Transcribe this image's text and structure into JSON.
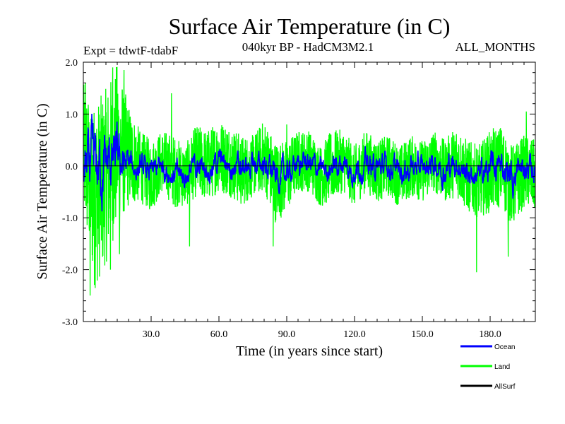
{
  "chart_data": {
    "type": "line",
    "title": "Surface Air Temperature (in C)",
    "subtitle_left": "Expt = tdwtF-tdabF",
    "subtitle_center": "040kyr BP - HadCM3M2.1",
    "subtitle_right": "ALL_MONTHS",
    "xlabel": "Time (in years since start)",
    "ylabel": "Surface Air Temperature (in C)",
    "xlim": [
      0,
      200
    ],
    "ylim": [
      -3.0,
      2.0
    ],
    "x_ticks": [
      30,
      60,
      90,
      120,
      150,
      180
    ],
    "x_tick_labels": [
      "30.0",
      "60.0",
      "90.0",
      "120.0",
      "150.0",
      "180.0"
    ],
    "y_ticks": [
      -3,
      -2,
      -1,
      0,
      1,
      2
    ],
    "y_tick_labels": [
      "-3.0",
      "-2.0",
      "-1.0",
      "0.0",
      "1.0",
      "2.0"
    ],
    "series": [
      {
        "name": "Land",
        "color": "#00ff00",
        "x": [
          0,
          5,
          10,
          15,
          20,
          25,
          30,
          35,
          40,
          45,
          50,
          55,
          60,
          65,
          70,
          75,
          80,
          85,
          90,
          95,
          100,
          105,
          110,
          115,
          120,
          125,
          130,
          135,
          140,
          145,
          150,
          155,
          160,
          165,
          170,
          175,
          180,
          185,
          190,
          195,
          200
        ],
        "values": [
          0.3,
          -0.6,
          -0.2,
          0.4,
          0.2,
          0.0,
          -0.2,
          0.1,
          -0.1,
          -0.2,
          0.1,
          0.0,
          0.2,
          0.1,
          -0.1,
          0.0,
          0.2,
          -0.3,
          -0.2,
          0.1,
          0.1,
          -0.2,
          0.0,
          0.1,
          -0.2,
          0.1,
          -0.1,
          0.0,
          -0.2,
          0.0,
          -0.1,
          0.1,
          -0.1,
          0.1,
          -0.2,
          -0.3,
          -0.1,
          0.0,
          -0.4,
          -0.1,
          -0.2
        ],
        "envelope": [
          1.3,
          1.8,
          1.7,
          1.6,
          1.0,
          0.7,
          0.7,
          0.6,
          0.7,
          0.6,
          0.7,
          0.7,
          0.7,
          0.7,
          0.7,
          0.6,
          0.7,
          0.8,
          0.7,
          0.6,
          0.6,
          0.6,
          0.7,
          0.6,
          0.6,
          0.6,
          0.6,
          0.6,
          0.6,
          0.6,
          0.6,
          0.6,
          0.6,
          0.7,
          0.7,
          0.7,
          0.8,
          0.8,
          0.8,
          0.7,
          0.7
        ],
        "peaks": [
          {
            "x": 1,
            "y": 1.6
          },
          {
            "x": 3,
            "y": -2.5
          },
          {
            "x": 13,
            "y": 1.9
          },
          {
            "x": 18,
            "y": 1.85
          },
          {
            "x": 12,
            "y": -2.0
          },
          {
            "x": 16,
            "y": -1.7
          },
          {
            "x": 39,
            "y": 1.4
          },
          {
            "x": 47,
            "y": -1.55
          },
          {
            "x": 84,
            "y": -1.55
          },
          {
            "x": 163,
            "y": 0.55
          },
          {
            "x": 174,
            "y": -2.05
          },
          {
            "x": 188,
            "y": -1.75
          },
          {
            "x": 196,
            "y": 1.05
          },
          {
            "x": 90,
            "y": 0.8
          }
        ]
      },
      {
        "name": "Ocean",
        "color": "#0000ff",
        "x": [
          0,
          5,
          10,
          15,
          20,
          25,
          30,
          35,
          40,
          45,
          50,
          55,
          60,
          65,
          70,
          75,
          80,
          85,
          90,
          95,
          100,
          105,
          110,
          115,
          120,
          125,
          130,
          135,
          140,
          145,
          150,
          155,
          160,
          165,
          170,
          175,
          180,
          185,
          190,
          195,
          200
        ],
        "values": [
          0.0,
          -0.1,
          0.0,
          0.1,
          0.0,
          -0.05,
          -0.15,
          0.0,
          -0.15,
          -0.2,
          0.0,
          -0.05,
          0.1,
          0.05,
          -0.05,
          0.0,
          0.05,
          -0.2,
          -0.15,
          0.05,
          0.05,
          -0.1,
          0.0,
          0.05,
          -0.1,
          0.05,
          -0.05,
          0.0,
          -0.1,
          0.0,
          -0.05,
          0.05,
          -0.05,
          0.05,
          -0.15,
          -0.2,
          -0.05,
          0.0,
          -0.2,
          -0.05,
          -0.1
        ],
        "envelope": [
          0.5,
          0.6,
          0.5,
          0.45,
          0.25,
          0.2,
          0.2,
          0.2,
          0.2,
          0.2,
          0.2,
          0.2,
          0.2,
          0.2,
          0.2,
          0.2,
          0.2,
          0.25,
          0.2,
          0.2,
          0.2,
          0.2,
          0.2,
          0.2,
          0.2,
          0.2,
          0.2,
          0.2,
          0.2,
          0.2,
          0.2,
          0.2,
          0.25,
          0.2,
          0.2,
          0.2,
          0.25,
          0.25,
          0.3,
          0.2,
          0.2
        ]
      },
      {
        "name": "AllSurf",
        "color": "#000000",
        "x": [
          0,
          200
        ],
        "values": [
          0.0,
          0.0
        ]
      }
    ],
    "legend": [
      "Ocean",
      "Land",
      "AllSurf"
    ],
    "legend_position": "bottom-right",
    "grid": false
  }
}
